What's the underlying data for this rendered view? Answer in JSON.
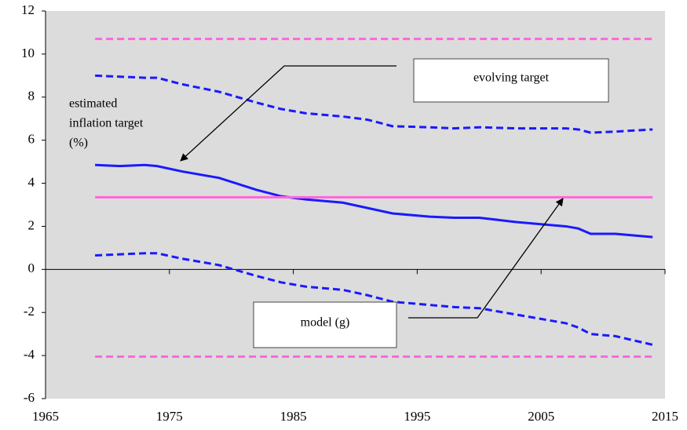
{
  "chart_data": {
    "type": "line",
    "x": [
      1969,
      1971,
      1973,
      1974,
      1976,
      1979,
      1982,
      1984,
      1986,
      1989,
      1991,
      1993,
      1996,
      1998,
      2000,
      2003,
      2006,
      2007,
      2008,
      2009,
      2011,
      2014
    ],
    "series": [
      {
        "color": "#1a1aff",
        "dash": false,
        "values": [
          4.85,
          4.8,
          4.85,
          4.8,
          4.55,
          4.25,
          3.7,
          3.4,
          3.25,
          3.1,
          2.85,
          2.6,
          2.45,
          2.4,
          2.4,
          2.2,
          2.05,
          2.0,
          1.9,
          1.65,
          1.65,
          1.5
        ]
      },
      {
        "color": "#1a1aff",
        "dash": true,
        "values": [
          9.0,
          8.95,
          8.9,
          8.9,
          8.6,
          8.25,
          7.75,
          7.45,
          7.25,
          7.1,
          6.95,
          6.65,
          6.6,
          6.55,
          6.6,
          6.55,
          6.55,
          6.55,
          6.5,
          6.35,
          6.4,
          6.5
        ]
      },
      {
        "color": "#1a1aff",
        "dash": true,
        "values": [
          0.65,
          0.7,
          0.75,
          0.75,
          0.5,
          0.2,
          -0.3,
          -0.6,
          -0.8,
          -0.95,
          -1.2,
          -1.5,
          -1.65,
          -1.75,
          -1.8,
          -2.1,
          -2.4,
          -2.5,
          -2.7,
          -3.0,
          -3.1,
          -3.5
        ]
      },
      {
        "color": "#ff66dd",
        "dash": false,
        "x": [
          1969,
          2014
        ],
        "values": [
          3.35,
          3.35
        ]
      },
      {
        "color": "#ff66dd",
        "dash": true,
        "x": [
          1969,
          2014
        ],
        "values": [
          10.7,
          10.7
        ]
      },
      {
        "color": "#ff66dd",
        "dash": true,
        "x": [
          1969,
          2014
        ],
        "values": [
          -4.05,
          -4.05
        ]
      }
    ],
    "xlim": [
      1965,
      2015
    ],
    "xticks": [
      1965,
      1975,
      1985,
      1995,
      2005,
      2015
    ],
    "ylim": [
      -6,
      12
    ],
    "yticks": [
      -6,
      -4,
      -2,
      0,
      2,
      4,
      6,
      8,
      10,
      12
    ],
    "annotations": [
      "evolving target",
      "model (g)"
    ],
    "y_label": [
      "estimated",
      "inflation target",
      "(%)"
    ]
  }
}
